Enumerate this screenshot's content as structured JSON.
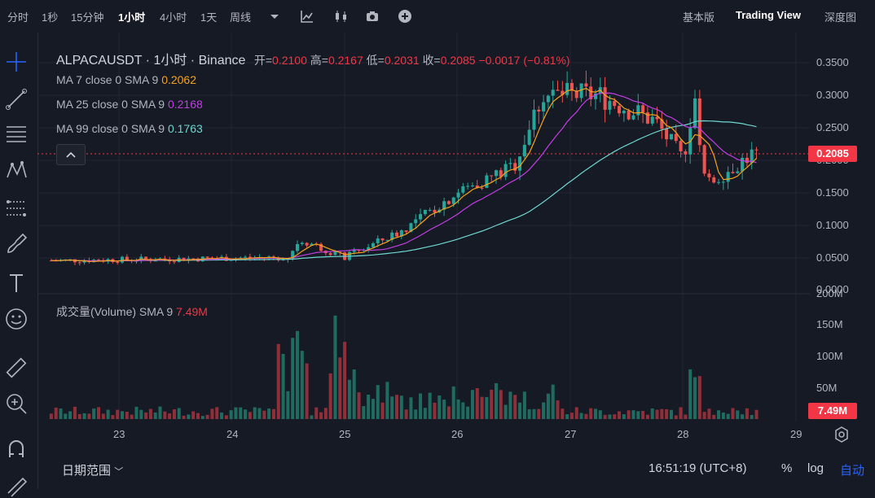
{
  "toolbar": {
    "intervals": [
      "分时",
      "1秒",
      "15分钟",
      "1小时",
      "4小时",
      "1天",
      "周线"
    ],
    "active_interval": "1小时",
    "icons": [
      "dropdown-icon",
      "indicators-icon",
      "candles-icon",
      "camera-icon",
      "add-icon"
    ],
    "views": [
      "基本版",
      "Trading View",
      "深度图"
    ],
    "active_view": "Trading View"
  },
  "legend": {
    "symbol": "ALPACAUSDT",
    "interval": "1小时",
    "exchange": "Binance",
    "open_label": "开=",
    "open": "0.2100",
    "high_label": "高=",
    "high": "0.2167",
    "low_label": "低=",
    "low": "0.2031",
    "close_label": "收=",
    "close": "0.2085",
    "change": "−0.0017 (−0.81%)",
    "ma7_label": "MA 7 close 0 SMA 9",
    "ma7_value": "0.2062",
    "ma25_label": "MA 25 close 0 SMA 9",
    "ma25_value": "0.2168",
    "ma99_label": "MA 99 close 0 SMA 9",
    "ma99_value": "0.1763",
    "volume_label": "成交量(Volume) SMA 9",
    "volume_value": "7.49M"
  },
  "price_axis": [
    "0.3500",
    "0.3000",
    "0.2500",
    "0.2000",
    "0.1500",
    "0.1000",
    "0.0500",
    "0.0000"
  ],
  "volume_axis": [
    "200M",
    "150M",
    "100M",
    "50M"
  ],
  "current_price_badge": "0.2085",
  "current_volume_badge": "7.49M",
  "time_axis": [
    "23",
    "24",
    "25",
    "26",
    "27",
    "28",
    "29"
  ],
  "bottom": {
    "date_range": "日期范围",
    "clock": "16:51:19 (UTC+8)",
    "percent": "%",
    "log": "log",
    "auto": "自动"
  },
  "colors": {
    "up": "#26a69a",
    "down": "#ef5350",
    "ma7": "#f7a21b",
    "ma25": "#c13ee3",
    "ma99": "#6ed7d0",
    "badge": "#f23645"
  },
  "chart_data": {
    "type": "candlestick",
    "ylim": [
      0,
      0.36
    ],
    "volume_ylim": [
      0,
      200
    ],
    "days": [
      "23",
      "24",
      "25",
      "26",
      "27",
      "28"
    ],
    "key_levels": [
      {
        "day": "22.5",
        "price": 0.045
      },
      {
        "day": "24.5",
        "price": 0.05
      },
      {
        "day": "24.6",
        "price": 0.078
      },
      {
        "day": "25.0",
        "price": 0.05
      },
      {
        "day": "25.5",
        "price": 0.09
      },
      {
        "day": "26.0",
        "price": 0.15
      },
      {
        "day": "26.5",
        "price": 0.19
      },
      {
        "day": "26.75",
        "price": 0.3
      },
      {
        "day": "27.25",
        "price": 0.3
      },
      {
        "day": "27.75",
        "price": 0.26
      },
      {
        "day": "28.0",
        "price": 0.2
      },
      {
        "day": "28.1",
        "price": 0.3
      },
      {
        "day": "28.2",
        "price": 0.16
      },
      {
        "day": "28.6",
        "price": 0.2085
      }
    ]
  }
}
